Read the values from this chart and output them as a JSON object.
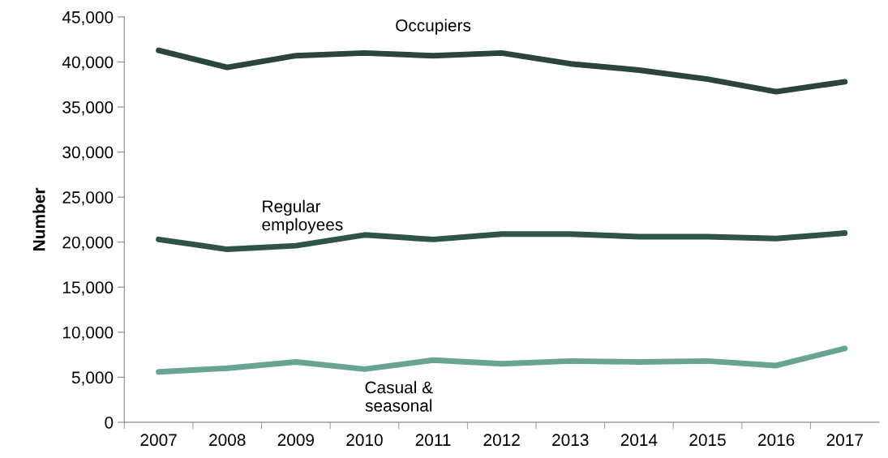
{
  "chart_data": {
    "type": "line",
    "ylabel": "Number",
    "categories": [
      "2007",
      "2008",
      "2009",
      "2010",
      "2011",
      "2012",
      "2013",
      "2014",
      "2015",
      "2016",
      "2017"
    ],
    "series": [
      {
        "name": "Occupiers",
        "color": "#2b4539",
        "values": [
          41300,
          39400,
          40700,
          41000,
          40700,
          41000,
          39800,
          39100,
          38100,
          36700,
          37800
        ]
      },
      {
        "name": "Regular employees",
        "color": "#2f5446",
        "values": [
          20300,
          19200,
          19600,
          20800,
          20300,
          20900,
          20900,
          20600,
          20600,
          20400,
          21000
        ]
      },
      {
        "name": "Casual & seasonal",
        "color": "#69a393",
        "values": [
          5600,
          6000,
          6700,
          5900,
          6900,
          6500,
          6800,
          6700,
          6800,
          6300,
          8200
        ]
      }
    ],
    "ylim": [
      0,
      45000
    ],
    "yticks": [
      {
        "value": 0,
        "label": "0"
      },
      {
        "value": 5000,
        "label": "5,000"
      },
      {
        "value": 10000,
        "label": "10,000"
      },
      {
        "value": 15000,
        "label": "15,000"
      },
      {
        "value": 20000,
        "label": "20,000"
      },
      {
        "value": 25000,
        "label": "25,000"
      },
      {
        "value": 30000,
        "label": "30,000"
      },
      {
        "value": 35000,
        "label": "35,000"
      },
      {
        "value": 40000,
        "label": "40,000"
      },
      {
        "value": 45000,
        "label": "45,000"
      }
    ],
    "grid": false,
    "legend": false,
    "marker": "none",
    "line_style": "solid"
  }
}
